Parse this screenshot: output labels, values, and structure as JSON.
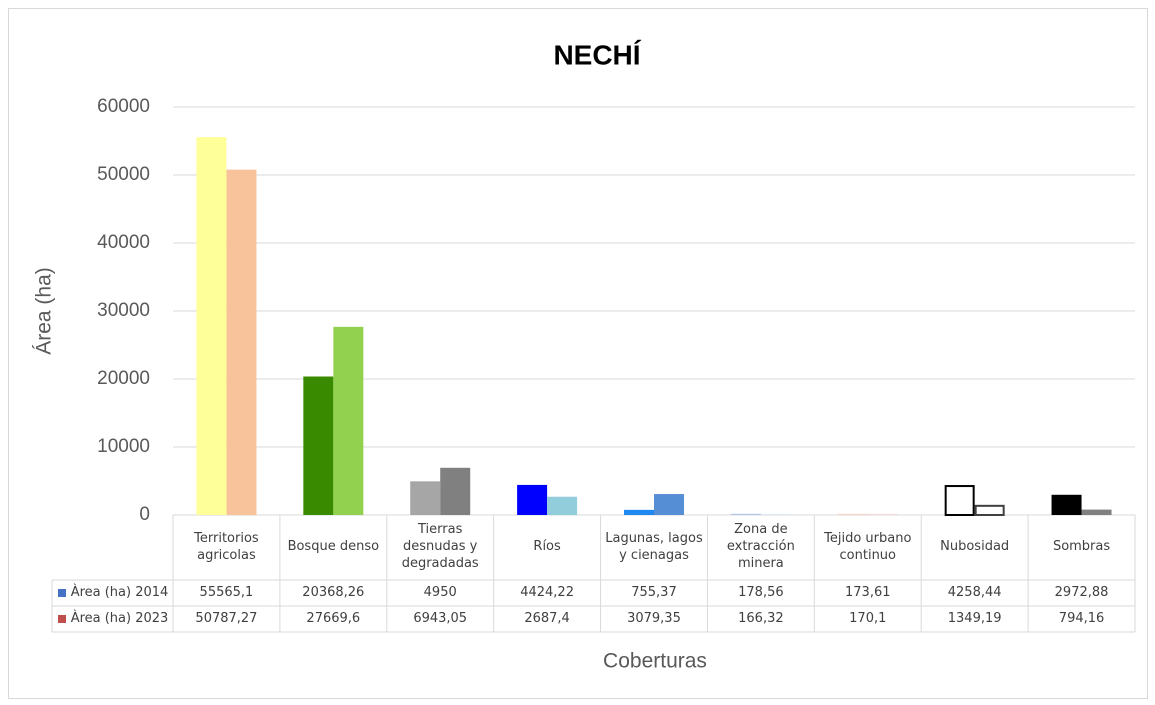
{
  "chart_data": {
    "type": "bar",
    "title": "NECHÍ",
    "x_label": "Coberturas",
    "y_label": "Área (ha)",
    "categories": [
      "Territorios agricolas",
      "Bosque denso",
      "Tierras desnudas y degradadas",
      "Ríos",
      "Lagunas, lagos y cienagas",
      "Zona de extracción minera",
      "Tejido urbano continuo",
      "Nubosidad",
      "Sombras"
    ],
    "series": [
      {
        "name": "Àrea (ha) 2014",
        "color": "#4472c4",
        "colors": [
          "#ffff99",
          "#3a8a00",
          "#a6a6a6",
          "#0000ff",
          "#1e88f0",
          "#b4c7e7",
          "#f4d6c8",
          "#ffffff",
          "#000000"
        ],
        "edgecolors": [
          null,
          null,
          null,
          null,
          null,
          null,
          null,
          "#000000",
          null
        ],
        "values": [
          55565.1,
          20368.26,
          4950,
          4424.22,
          755.37,
          178.56,
          173.61,
          4258.44,
          2972.88
        ],
        "value_labels": [
          "55565,1",
          "20368,26",
          "4950",
          "4424,22",
          "755,37",
          "178,56",
          "173,61",
          "4258,44",
          "2972,88"
        ]
      },
      {
        "name": "Àrea (ha) 2023",
        "color": "#c0504d",
        "colors": [
          "#f8c39a",
          "#92d050",
          "#808080",
          "#92cddc",
          "#558ed5",
          "#deebf7",
          "#f2dcdb",
          "#ffffff",
          "#808080"
        ],
        "edgecolors": [
          null,
          null,
          null,
          null,
          null,
          null,
          null,
          "#404040",
          null
        ],
        "values": [
          50787.27,
          27669.6,
          6943.05,
          2687.4,
          3079.35,
          166.32,
          170.1,
          1349.19,
          794.16
        ],
        "value_labels": [
          "50787,27",
          "27669,6",
          "6943,05",
          "2687,4",
          "3079,35",
          "166,32",
          "170,1",
          "1349,19",
          "794,16"
        ]
      }
    ],
    "ylim": [
      0,
      60000
    ],
    "yticks": [
      0,
      10000,
      20000,
      30000,
      40000,
      50000,
      60000
    ],
    "grid": true
  }
}
